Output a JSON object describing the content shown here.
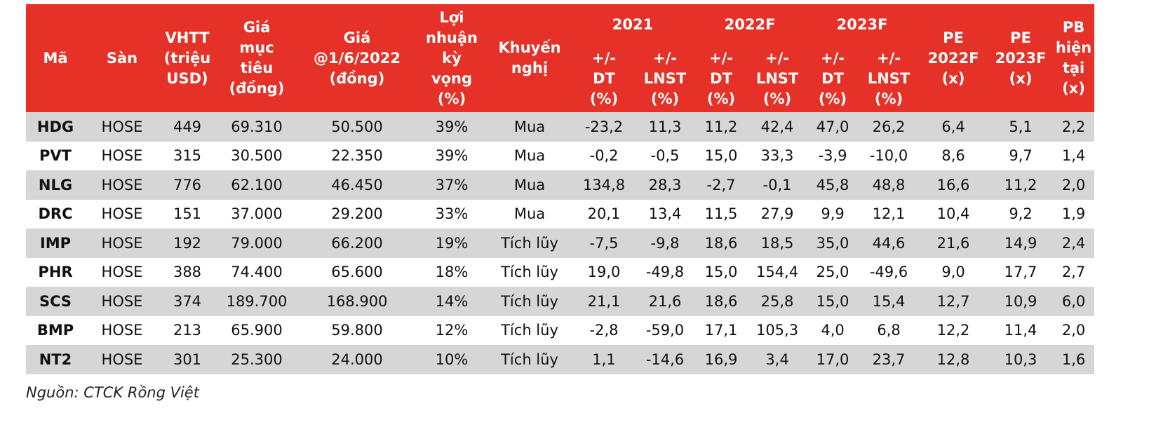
{
  "header": {
    "code": "Mã",
    "exchange": "Sàn",
    "mcap": [
      "VHTT",
      "(triệu",
      "USD)"
    ],
    "target": [
      "Giá",
      "mục",
      "tiêu",
      "(đồng)"
    ],
    "price": [
      "Giá",
      "@1/6/2022",
      "(đồng)"
    ],
    "expected_return": [
      "Lợi",
      "nhuận",
      "kỳ",
      "vọng",
      "(%)"
    ],
    "recommendation": [
      "Khuyến",
      "nghị"
    ],
    "year_2021": "2021",
    "year_2022f": "2022F",
    "year_2023f": "2023F",
    "dt": [
      "+/-",
      "DT",
      "(%)"
    ],
    "lnst": [
      "+/-",
      "LNST",
      "(%)"
    ],
    "pe2022": [
      "PE",
      "2022F",
      "(x)"
    ],
    "pe2023": [
      "PE",
      "2023F",
      "(x)"
    ],
    "pb": [
      "PB",
      "hiện",
      "tại",
      "(x)"
    ]
  },
  "rows": [
    [
      "HDG",
      "HOSE",
      "449",
      "69.310",
      "50.500",
      "39%",
      "Mua",
      "-23,2",
      "11,3",
      "11,2",
      "42,4",
      "47,0",
      "26,2",
      "6,4",
      "5,1",
      "2,2"
    ],
    [
      "PVT",
      "HOSE",
      "315",
      "30.500",
      "22.350",
      "39%",
      "Mua",
      "-0,2",
      "-0,5",
      "15,0",
      "33,3",
      "-3,9",
      "-10,0",
      "8,6",
      "9,7",
      "1,4"
    ],
    [
      "NLG",
      "HOSE",
      "776",
      "62.100",
      "46.450",
      "37%",
      "Mua",
      "134,8",
      "28,3",
      "-2,7",
      "-0,1",
      "45,8",
      "48,8",
      "16,6",
      "11,2",
      "2,0"
    ],
    [
      "DRC",
      "HOSE",
      "151",
      "37.000",
      "29.200",
      "33%",
      "Mua",
      "20,1",
      "13,4",
      "11,5",
      "27,9",
      "9,9",
      "12,1",
      "10,4",
      "9,2",
      "1,9"
    ],
    [
      "IMP",
      "HOSE",
      "192",
      "79.000",
      "66.200",
      "19%",
      "Tích lũy",
      "-7,5",
      "-9,8",
      "18,6",
      "18,5",
      "35,0",
      "44,6",
      "21,6",
      "14,9",
      "2,4"
    ],
    [
      "PHR",
      "HOSE",
      "388",
      "74.400",
      "65.600",
      "18%",
      "Tích lũy",
      "19,0",
      "-49,8",
      "15,0",
      "154,4",
      "25,0",
      "-49,6",
      "9,0",
      "17,7",
      "2,7"
    ],
    [
      "SCS",
      "HOSE",
      "374",
      "189.700",
      "168.900",
      "14%",
      "Tích lũy",
      "21,1",
      "21,6",
      "18,6",
      "25,8",
      "15,0",
      "15,4",
      "12,7",
      "10,9",
      "6,0"
    ],
    [
      "BMP",
      "HOSE",
      "213",
      "65.900",
      "59.800",
      "12%",
      "Tích lũy",
      "-2,8",
      "-59,0",
      "17,1",
      "105,3",
      "4,0",
      "6,8",
      "12,2",
      "11,4",
      "2,0"
    ],
    [
      "NT2",
      "HOSE",
      "301",
      "25.300",
      "24.000",
      "10%",
      "Tích lũy",
      "1,1",
      "-14,6",
      "16,9",
      "3,4",
      "17,0",
      "23,7",
      "12,8",
      "10,3",
      "1,6"
    ]
  ],
  "source": "Nguồn: CTCK Rồng Việt"
}
